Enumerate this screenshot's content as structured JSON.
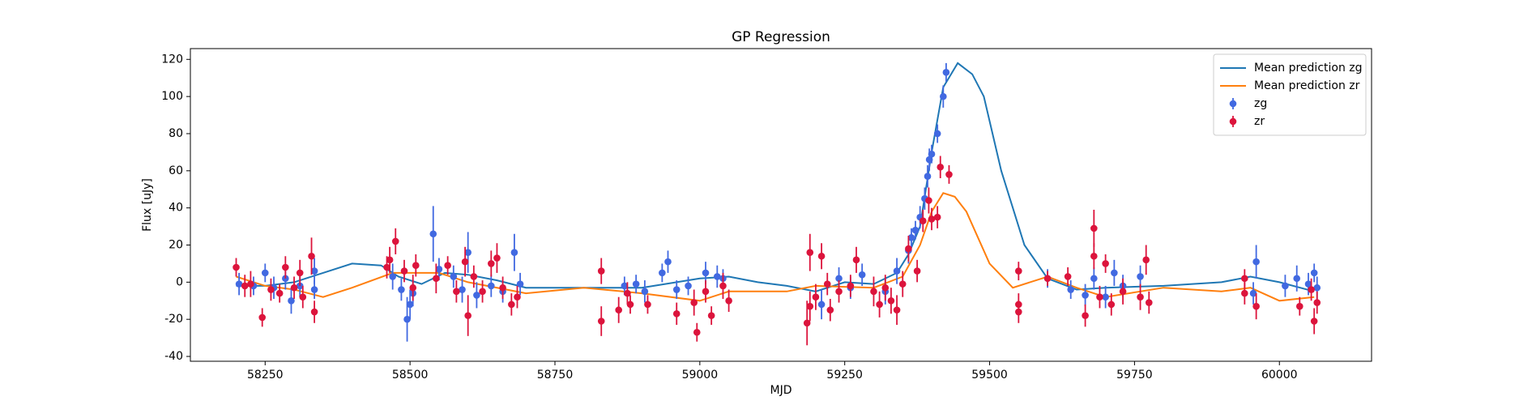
{
  "chart_data": {
    "type": "gp-errorbar",
    "title": "GP Regression",
    "x_label": "MJD",
    "y_label": "Flux [uJy]",
    "xlim": [
      58121,
      60159
    ],
    "ylim": [
      -42.6,
      125.8
    ],
    "xticks": [
      58250,
      58500,
      58750,
      59000,
      59250,
      59500,
      59750,
      60000
    ],
    "yticks": [
      -40,
      -20,
      0,
      20,
      40,
      60,
      80,
      100,
      120
    ],
    "legend": "upper right",
    "series": [
      {
        "name": "Mean prediction zg",
        "type": "line",
        "color": "#1f77b4",
        "x": [
          58200,
          58250,
          58300,
          58350,
          58400,
          58450,
          58480,
          58520,
          58560,
          58600,
          58650,
          58700,
          58800,
          58900,
          58960,
          59000,
          59050,
          59100,
          59150,
          59200,
          59250,
          59300,
          59340,
          59360,
          59380,
          59400,
          59420,
          59445,
          59470,
          59490,
          59520,
          59560,
          59600,
          59650,
          59700,
          59800,
          59900,
          59950,
          60000,
          60060
        ],
        "values": [
          -2,
          -2,
          0,
          5,
          10,
          9,
          3,
          -1,
          5,
          4,
          1,
          -3,
          -3,
          -3,
          0,
          2,
          3,
          0,
          -2,
          -5,
          0,
          -1,
          5,
          15,
          30,
          70,
          105,
          118,
          112,
          100,
          60,
          20,
          2,
          -4,
          -3,
          -2,
          0,
          3,
          0,
          -5
        ]
      },
      {
        "name": "Mean prediction zr",
        "type": "line",
        "color": "#ff7f0e",
        "x": [
          58200,
          58250,
          58300,
          58350,
          58400,
          58470,
          58550,
          58600,
          58700,
          58800,
          58900,
          59000,
          59050,
          59150,
          59200,
          59300,
          59350,
          59380,
          59400,
          59420,
          59440,
          59460,
          59500,
          59540,
          59600,
          59650,
          59700,
          59800,
          59900,
          59950,
          60000,
          60060
        ],
        "values": [
          3,
          -2,
          -4,
          -8,
          -3,
          5,
          5,
          0,
          -6,
          -3,
          -6,
          -10,
          -5,
          -5,
          -2,
          -3,
          3,
          20,
          38,
          48,
          46,
          38,
          10,
          -3,
          3,
          -3,
          -8,
          -3,
          -5,
          -3,
          -10,
          -8
        ]
      },
      {
        "name": "zg",
        "type": "errorbar",
        "color": "#4169e1",
        "x": [
          58205,
          58230,
          58250,
          58265,
          58285,
          58295,
          58310,
          58335,
          58335,
          58470,
          58485,
          58495,
          58500,
          58505,
          58540,
          58550,
          58575,
          58590,
          58600,
          58615,
          58640,
          58660,
          58680,
          58690,
          58870,
          58890,
          58905,
          58935,
          58945,
          58960,
          58980,
          59010,
          59030,
          59040,
          59210,
          59240,
          59260,
          59280,
          59320,
          59340,
          59360,
          59365,
          59372,
          59380,
          59388,
          59393,
          59396,
          59400,
          59410,
          59420,
          59425,
          59600,
          59640,
          59665,
          59680,
          59700,
          59715,
          59730,
          59760,
          59955,
          59960,
          60010,
          60030,
          60050,
          60060,
          60065
        ],
        "values": [
          -1,
          -2,
          5,
          -3,
          2,
          -10,
          -2,
          6,
          -4,
          3,
          -4,
          -20,
          -12,
          -6,
          26,
          7,
          3,
          -4,
          16,
          -7,
          -2,
          -5,
          16,
          -1,
          -2,
          -1,
          -5,
          5,
          11,
          -4,
          -2,
          5,
          3,
          2,
          -12,
          2,
          -3,
          4,
          -5,
          6,
          17,
          24,
          28,
          35,
          45,
          57,
          66,
          69,
          80,
          100,
          113,
          2,
          -4,
          -7,
          2,
          -8,
          5,
          -2,
          3,
          -6,
          11,
          -2,
          2,
          -1,
          5,
          -3
        ],
        "yerr": [
          6,
          5,
          5,
          6,
          6,
          7,
          6,
          7,
          5,
          7,
          6,
          12,
          8,
          7,
          15,
          6,
          6,
          7,
          11,
          7,
          6,
          6,
          10,
          6,
          5,
          5,
          6,
          5,
          6,
          5,
          5,
          6,
          6,
          5,
          8,
          6,
          6,
          6,
          7,
          7,
          7,
          5,
          5,
          6,
          6,
          6,
          6,
          5,
          5,
          6,
          5,
          5,
          5,
          6,
          6,
          6,
          7,
          6,
          6,
          6,
          9,
          6,
          7,
          6,
          5,
          6
        ]
      },
      {
        "name": "zr",
        "type": "errorbar",
        "color": "#dc143c",
        "x": [
          58200,
          58215,
          58225,
          58245,
          58260,
          58275,
          58285,
          58300,
          58310,
          58315,
          58330,
          58335,
          58460,
          58465,
          58475,
          58490,
          58505,
          58510,
          58545,
          58565,
          58580,
          58595,
          58600,
          58610,
          58625,
          58640,
          58650,
          58660,
          58675,
          58685,
          58830,
          58830,
          58860,
          58875,
          58880,
          58910,
          58960,
          58990,
          58995,
          59010,
          59020,
          59040,
          59050,
          59185,
          59190,
          59190,
          59200,
          59210,
          59220,
          59225,
          59240,
          59260,
          59270,
          59300,
          59310,
          59320,
          59330,
          59340,
          59350,
          59360,
          59375,
          59385,
          59395,
          59400,
          59410,
          59415,
          59430,
          59550,
          59550,
          59550,
          59600,
          59635,
          59665,
          59680,
          59680,
          59690,
          59700,
          59710,
          59730,
          59760,
          59770,
          59775,
          59940,
          59940,
          59960,
          60035,
          60055,
          60060,
          60065
        ],
        "values": [
          8,
          -2,
          -1,
          -19,
          -4,
          -6,
          8,
          -3,
          5,
          -8,
          14,
          -16,
          8,
          12,
          22,
          6,
          -3,
          9,
          2,
          9,
          -5,
          11,
          -18,
          3,
          -5,
          10,
          13,
          -3,
          -12,
          -8,
          6,
          -21,
          -15,
          -6,
          -12,
          -12,
          -17,
          -11,
          -27,
          -5,
          -18,
          -2,
          -10,
          -22,
          -13,
          16,
          -8,
          14,
          -1,
          -15,
          -5,
          -2,
          12,
          -5,
          -12,
          -3,
          -10,
          -15,
          -1,
          18,
          6,
          33,
          44,
          34,
          35,
          62,
          58,
          6,
          -12,
          -16,
          2,
          3,
          -18,
          29,
          14,
          -8,
          10,
          -12,
          -5,
          -8,
          12,
          -11,
          -6,
          2,
          -13,
          -13,
          -4,
          -21,
          -11
        ],
        "yerr": [
          5,
          6,
          7,
          5,
          6,
          5,
          6,
          6,
          7,
          6,
          10,
          6,
          6,
          7,
          7,
          6,
          7,
          6,
          8,
          5,
          6,
          8,
          11,
          6,
          6,
          7,
          8,
          6,
          6,
          6,
          7,
          8,
          7,
          6,
          5,
          5,
          6,
          7,
          5,
          6,
          5,
          7,
          6,
          12,
          8,
          10,
          7,
          7,
          6,
          6,
          6,
          6,
          7,
          8,
          7,
          7,
          7,
          8,
          7,
          7,
          6,
          6,
          7,
          6,
          6,
          6,
          5,
          5,
          6,
          6,
          4,
          5,
          6,
          10,
          7,
          6,
          5,
          6,
          7,
          7,
          8,
          6,
          6,
          5,
          7,
          5,
          6,
          7,
          6
        ]
      }
    ]
  }
}
